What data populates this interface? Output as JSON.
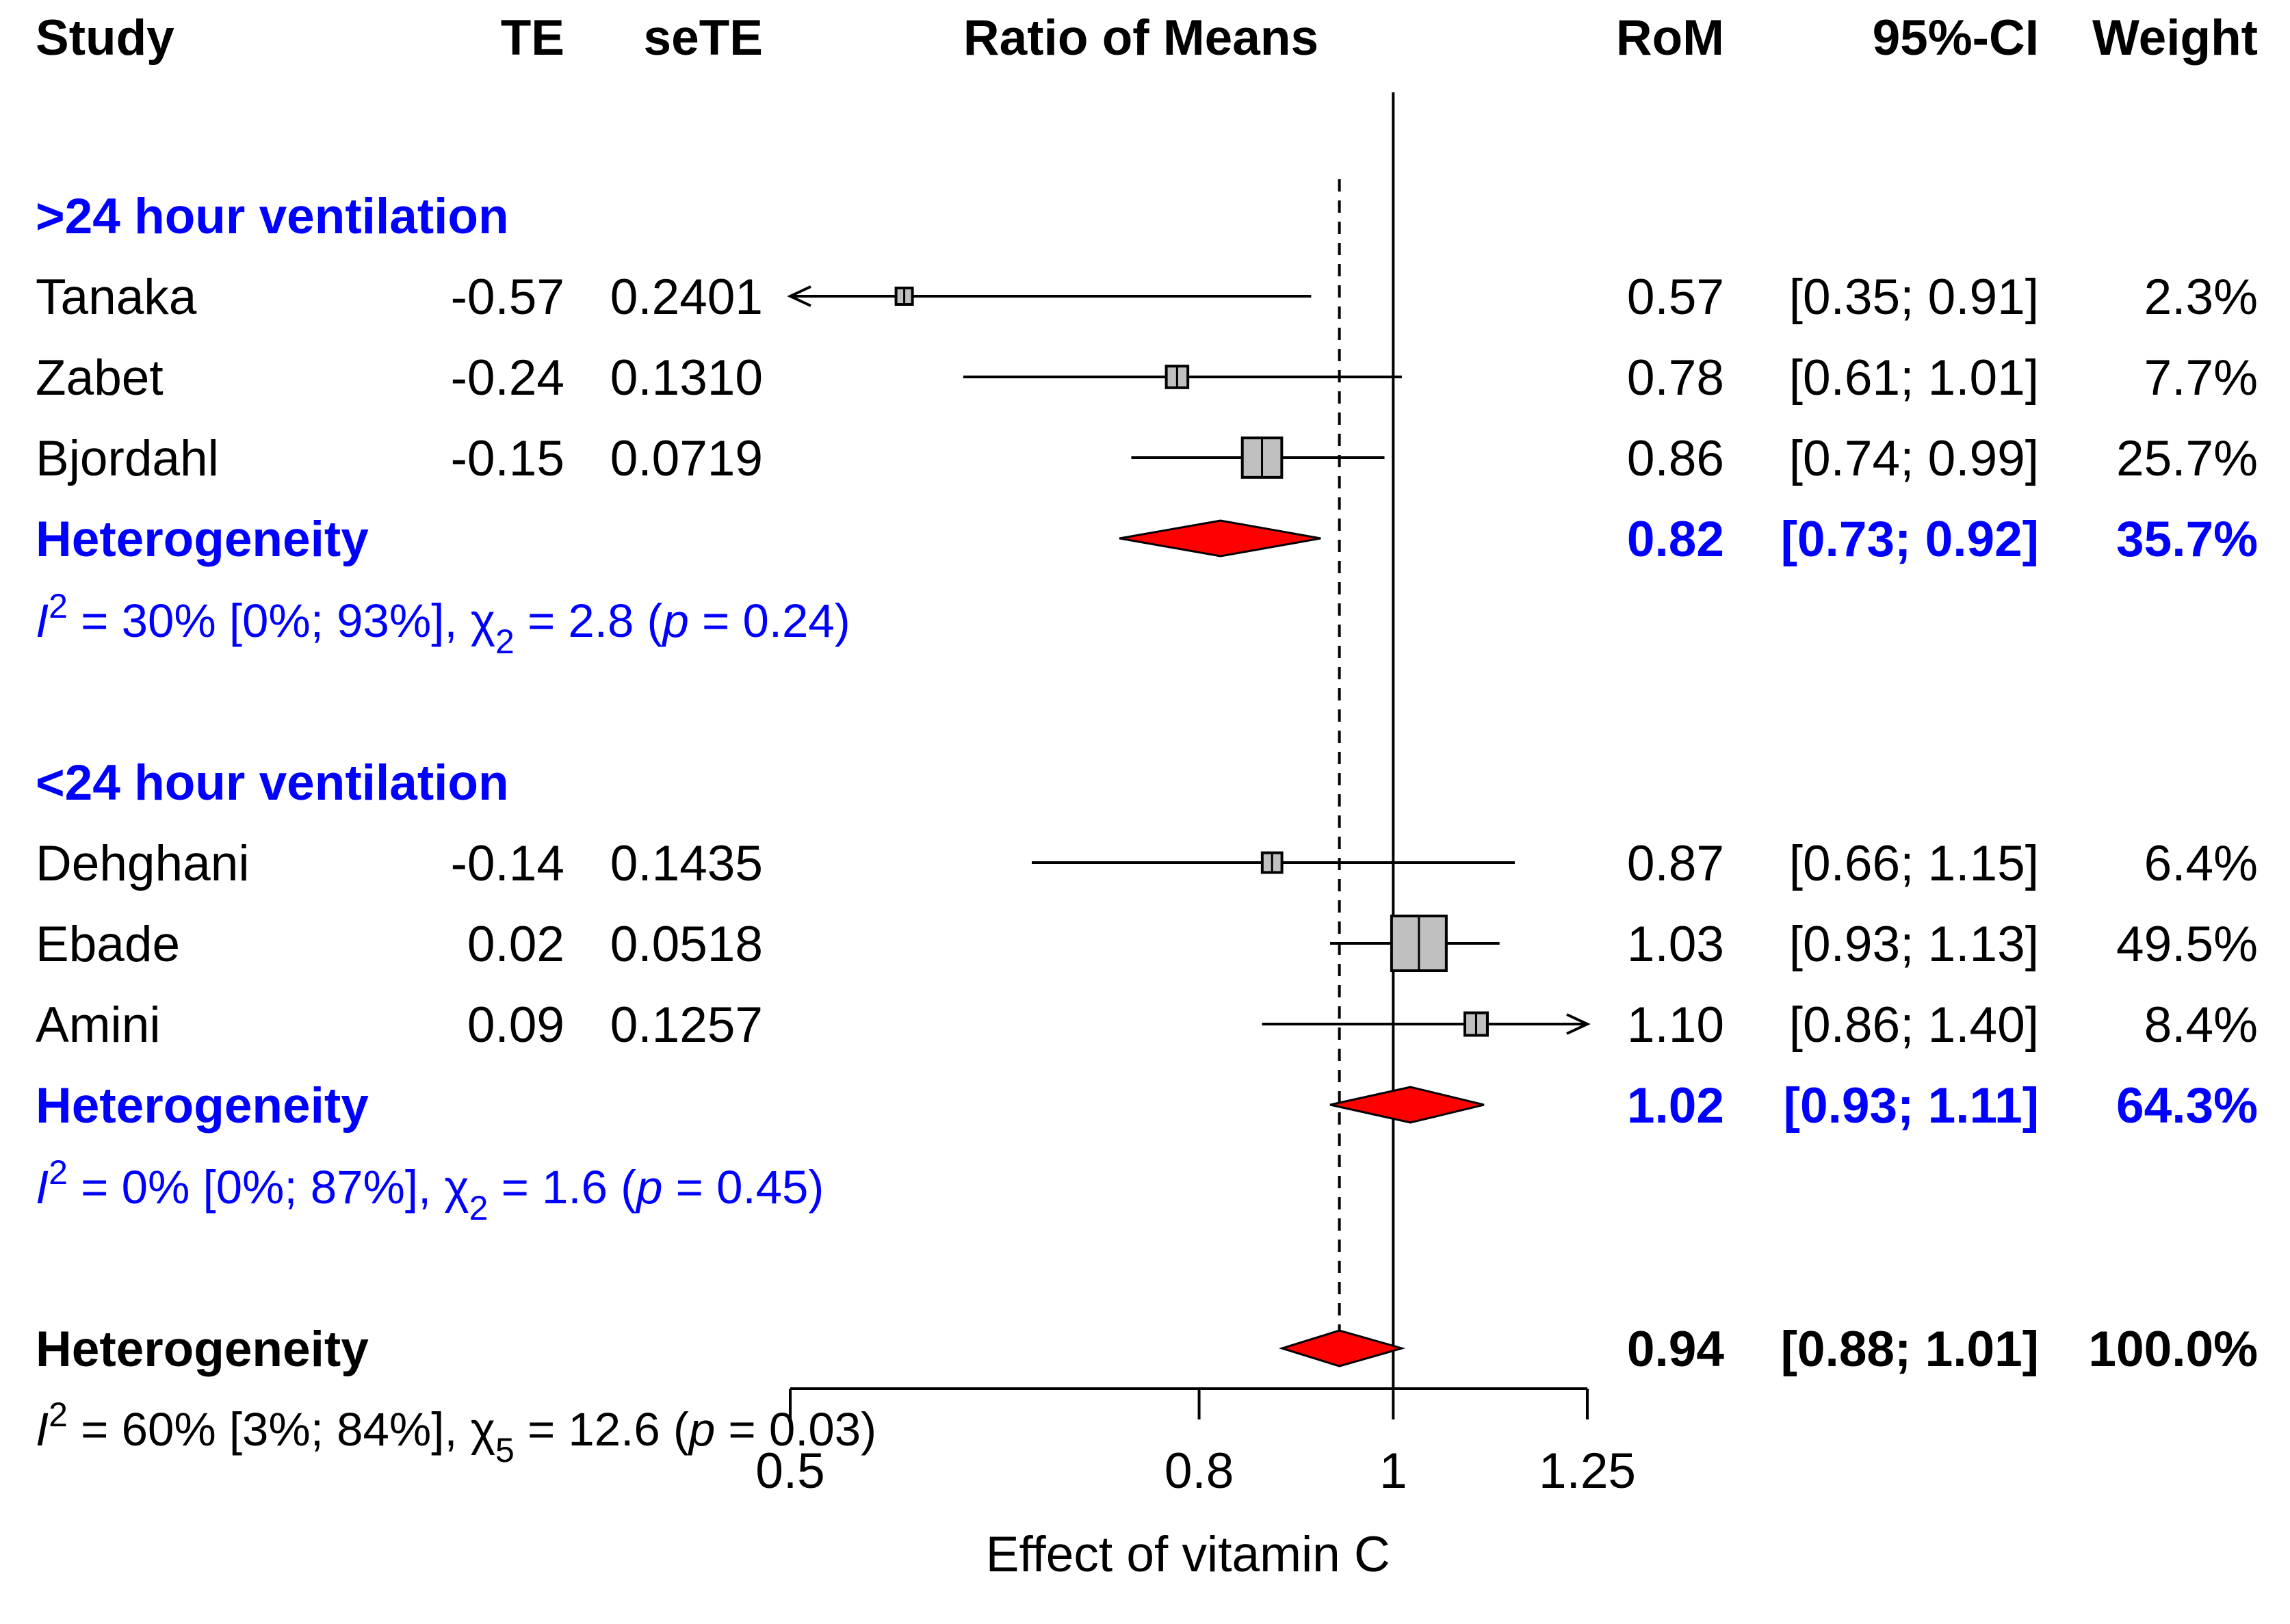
{
  "chart_data": {
    "type": "forest",
    "title": "Ratio of Means",
    "xlabel": "Effect of vitamin C",
    "xscale": "log",
    "xlim": [
      0.5,
      1.25
    ],
    "xticks": [
      0.5,
      0.8,
      1,
      1.25
    ],
    "xtick_labels": [
      "0.5",
      "0.8",
      "1",
      "1.25"
    ],
    "reference_line": 1,
    "pooled_line": 0.94,
    "headers": {
      "study": "Study",
      "te": "TE",
      "sete": "seTE",
      "rom": "RoM",
      "ci": "95%-CI",
      "weight": "Weight"
    },
    "subgroups": [
      {
        "name": ">24 hour ventilation",
        "studies": [
          {
            "name": "Tanaka",
            "te": "-0.57",
            "sete": "0.2401",
            "rom": 0.57,
            "lower": 0.35,
            "upper": 0.91,
            "rom_label": "0.57",
            "ci": "[0.35; 0.91]",
            "weight": "2.3%"
          },
          {
            "name": "Zabet",
            "te": "-0.24",
            "sete": "0.1310",
            "rom": 0.78,
            "lower": 0.61,
            "upper": 1.01,
            "rom_label": "0.78",
            "ci": "[0.61; 1.01]",
            "weight": "7.7%"
          },
          {
            "name": "Bjordahl",
            "te": "-0.15",
            "sete": "0.0719",
            "rom": 0.86,
            "lower": 0.74,
            "upper": 0.99,
            "rom_label": "0.86",
            "ci": "[0.74; 0.99]",
            "weight": "25.7%"
          }
        ],
        "summary": {
          "label": "Heterogeneity",
          "rom": 0.82,
          "lower": 0.73,
          "upper": 0.92,
          "rom_label": "0.82",
          "ci": "[0.73; 0.92]",
          "weight": "35.7%"
        },
        "stat": {
          "i2": "30% [0%; 93%]",
          "df": "2",
          "chi": "2.8",
          "p": "0.24"
        }
      },
      {
        "name": "<24 hour ventilation",
        "studies": [
          {
            "name": "Dehghani",
            "te": "-0.14",
            "sete": "0.1435",
            "rom": 0.87,
            "lower": 0.66,
            "upper": 1.15,
            "rom_label": "0.87",
            "ci": "[0.66; 1.15]",
            "weight": "6.4%"
          },
          {
            "name": "Ebade",
            "te": "0.02",
            "sete": "0.0518",
            "rom": 1.03,
            "lower": 0.93,
            "upper": 1.13,
            "rom_label": "1.03",
            "ci": "[0.93; 1.13]",
            "weight": "49.5%"
          },
          {
            "name": "Amini",
            "te": "0.09",
            "sete": "0.1257",
            "rom": 1.1,
            "lower": 0.86,
            "upper": 1.4,
            "rom_label": "1.10",
            "ci": "[0.86; 1.40]",
            "weight": "8.4%"
          }
        ],
        "summary": {
          "label": "Heterogeneity",
          "rom": 1.02,
          "lower": 0.93,
          "upper": 1.11,
          "rom_label": "1.02",
          "ci": "[0.93; 1.11]",
          "weight": "64.3%"
        },
        "stat": {
          "i2": "0% [0%; 87%]",
          "df": "2",
          "chi": "1.6",
          "p": "0.45"
        }
      }
    ],
    "overall": {
      "label": "Heterogeneity",
      "rom": 0.94,
      "lower": 0.88,
      "upper": 1.01,
      "rom_label": "0.94",
      "ci": "[0.88; 1.01]",
      "weight": "100.0%",
      "stat": {
        "i2": "60% [3%; 84%]",
        "df": "5",
        "chi": "12.6",
        "p": "0.03"
      }
    }
  },
  "colors": {
    "subgroup_text": "#0000ff",
    "diamond_fill": "#ff0000",
    "square_fill": "#c0c0c0",
    "line": "#000000"
  }
}
